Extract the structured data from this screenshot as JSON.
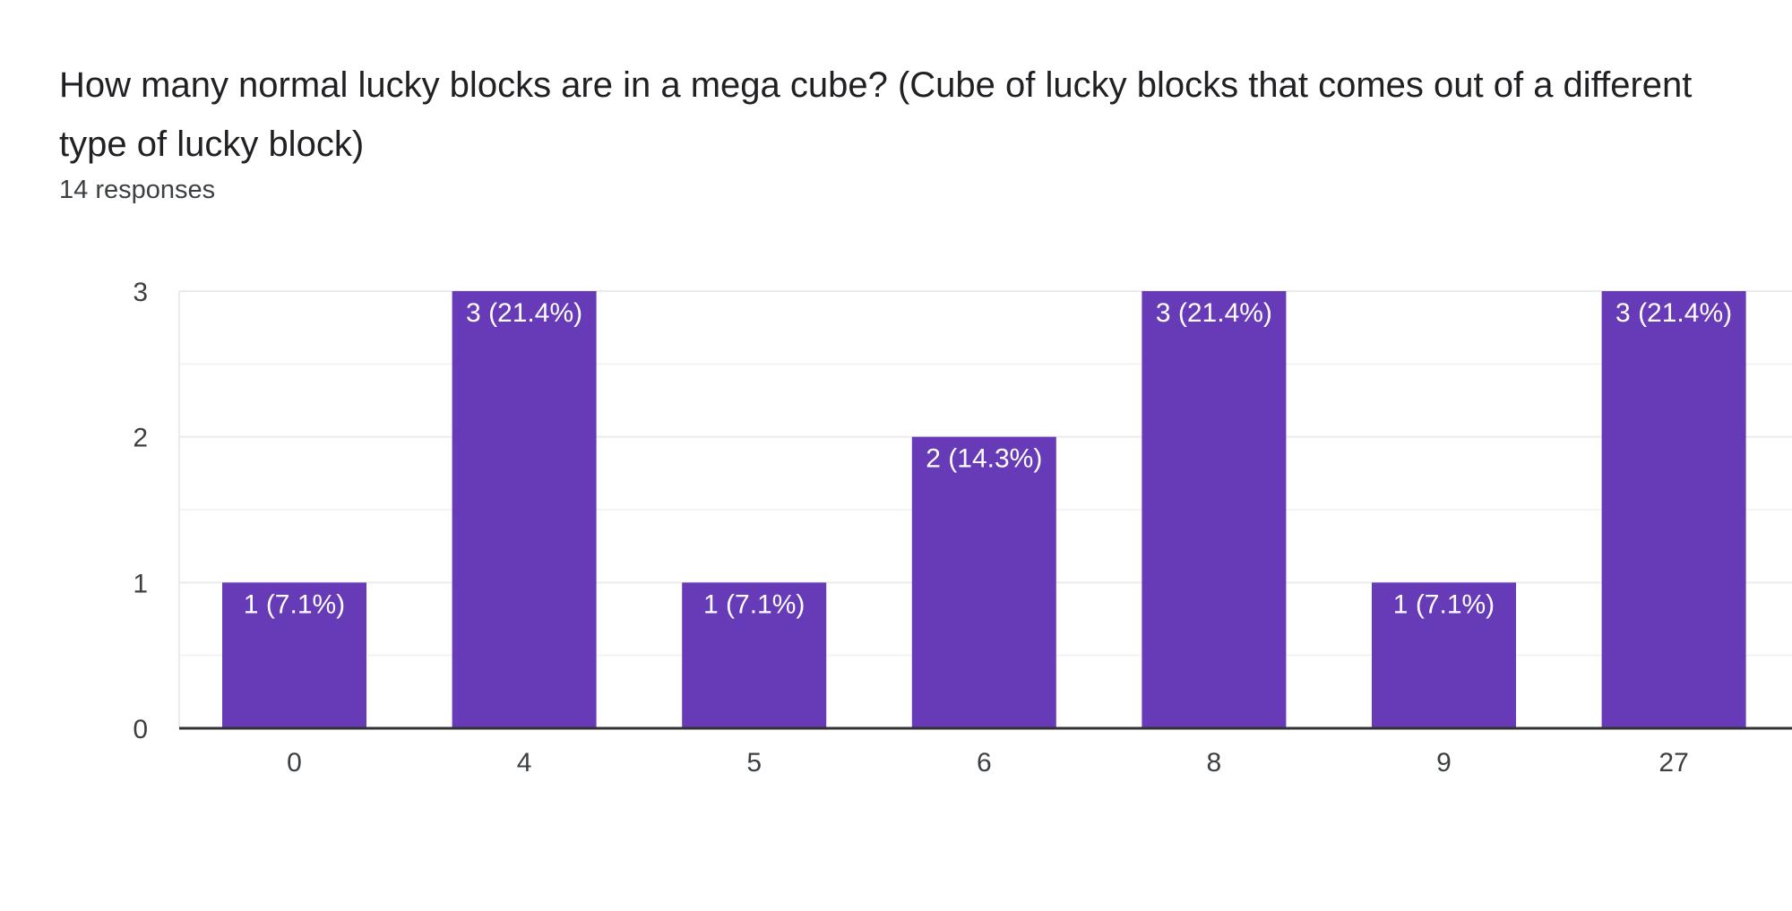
{
  "question": {
    "title": "How many normal lucky blocks are in a mega cube? (Cube of lucky blocks that comes out of a different type of lucky block)",
    "responses": "14 responses"
  },
  "colors": {
    "bar": "#673ab7",
    "grid": "#ebebeb",
    "axis": "#333333"
  },
  "chart_data": {
    "type": "bar",
    "title": "How many normal lucky blocks are in a mega cube? (Cube of lucky blocks that comes out of a different type of lucky block)",
    "categories": [
      "0",
      "4",
      "5",
      "6",
      "8",
      "9",
      "27"
    ],
    "values": [
      1,
      3,
      1,
      2,
      3,
      1,
      3
    ],
    "data_labels": [
      "1 (7.1%)",
      "3 (21.4%)",
      "1 (7.1%)",
      "2 (14.3%)",
      "3 (21.4%)",
      "1 (7.1%)",
      "3 (21.4%)"
    ],
    "ylim": [
      0,
      3
    ],
    "yticks": [
      "0",
      "1",
      "2",
      "3"
    ],
    "grid": true,
    "xlabel": "",
    "ylabel": ""
  }
}
